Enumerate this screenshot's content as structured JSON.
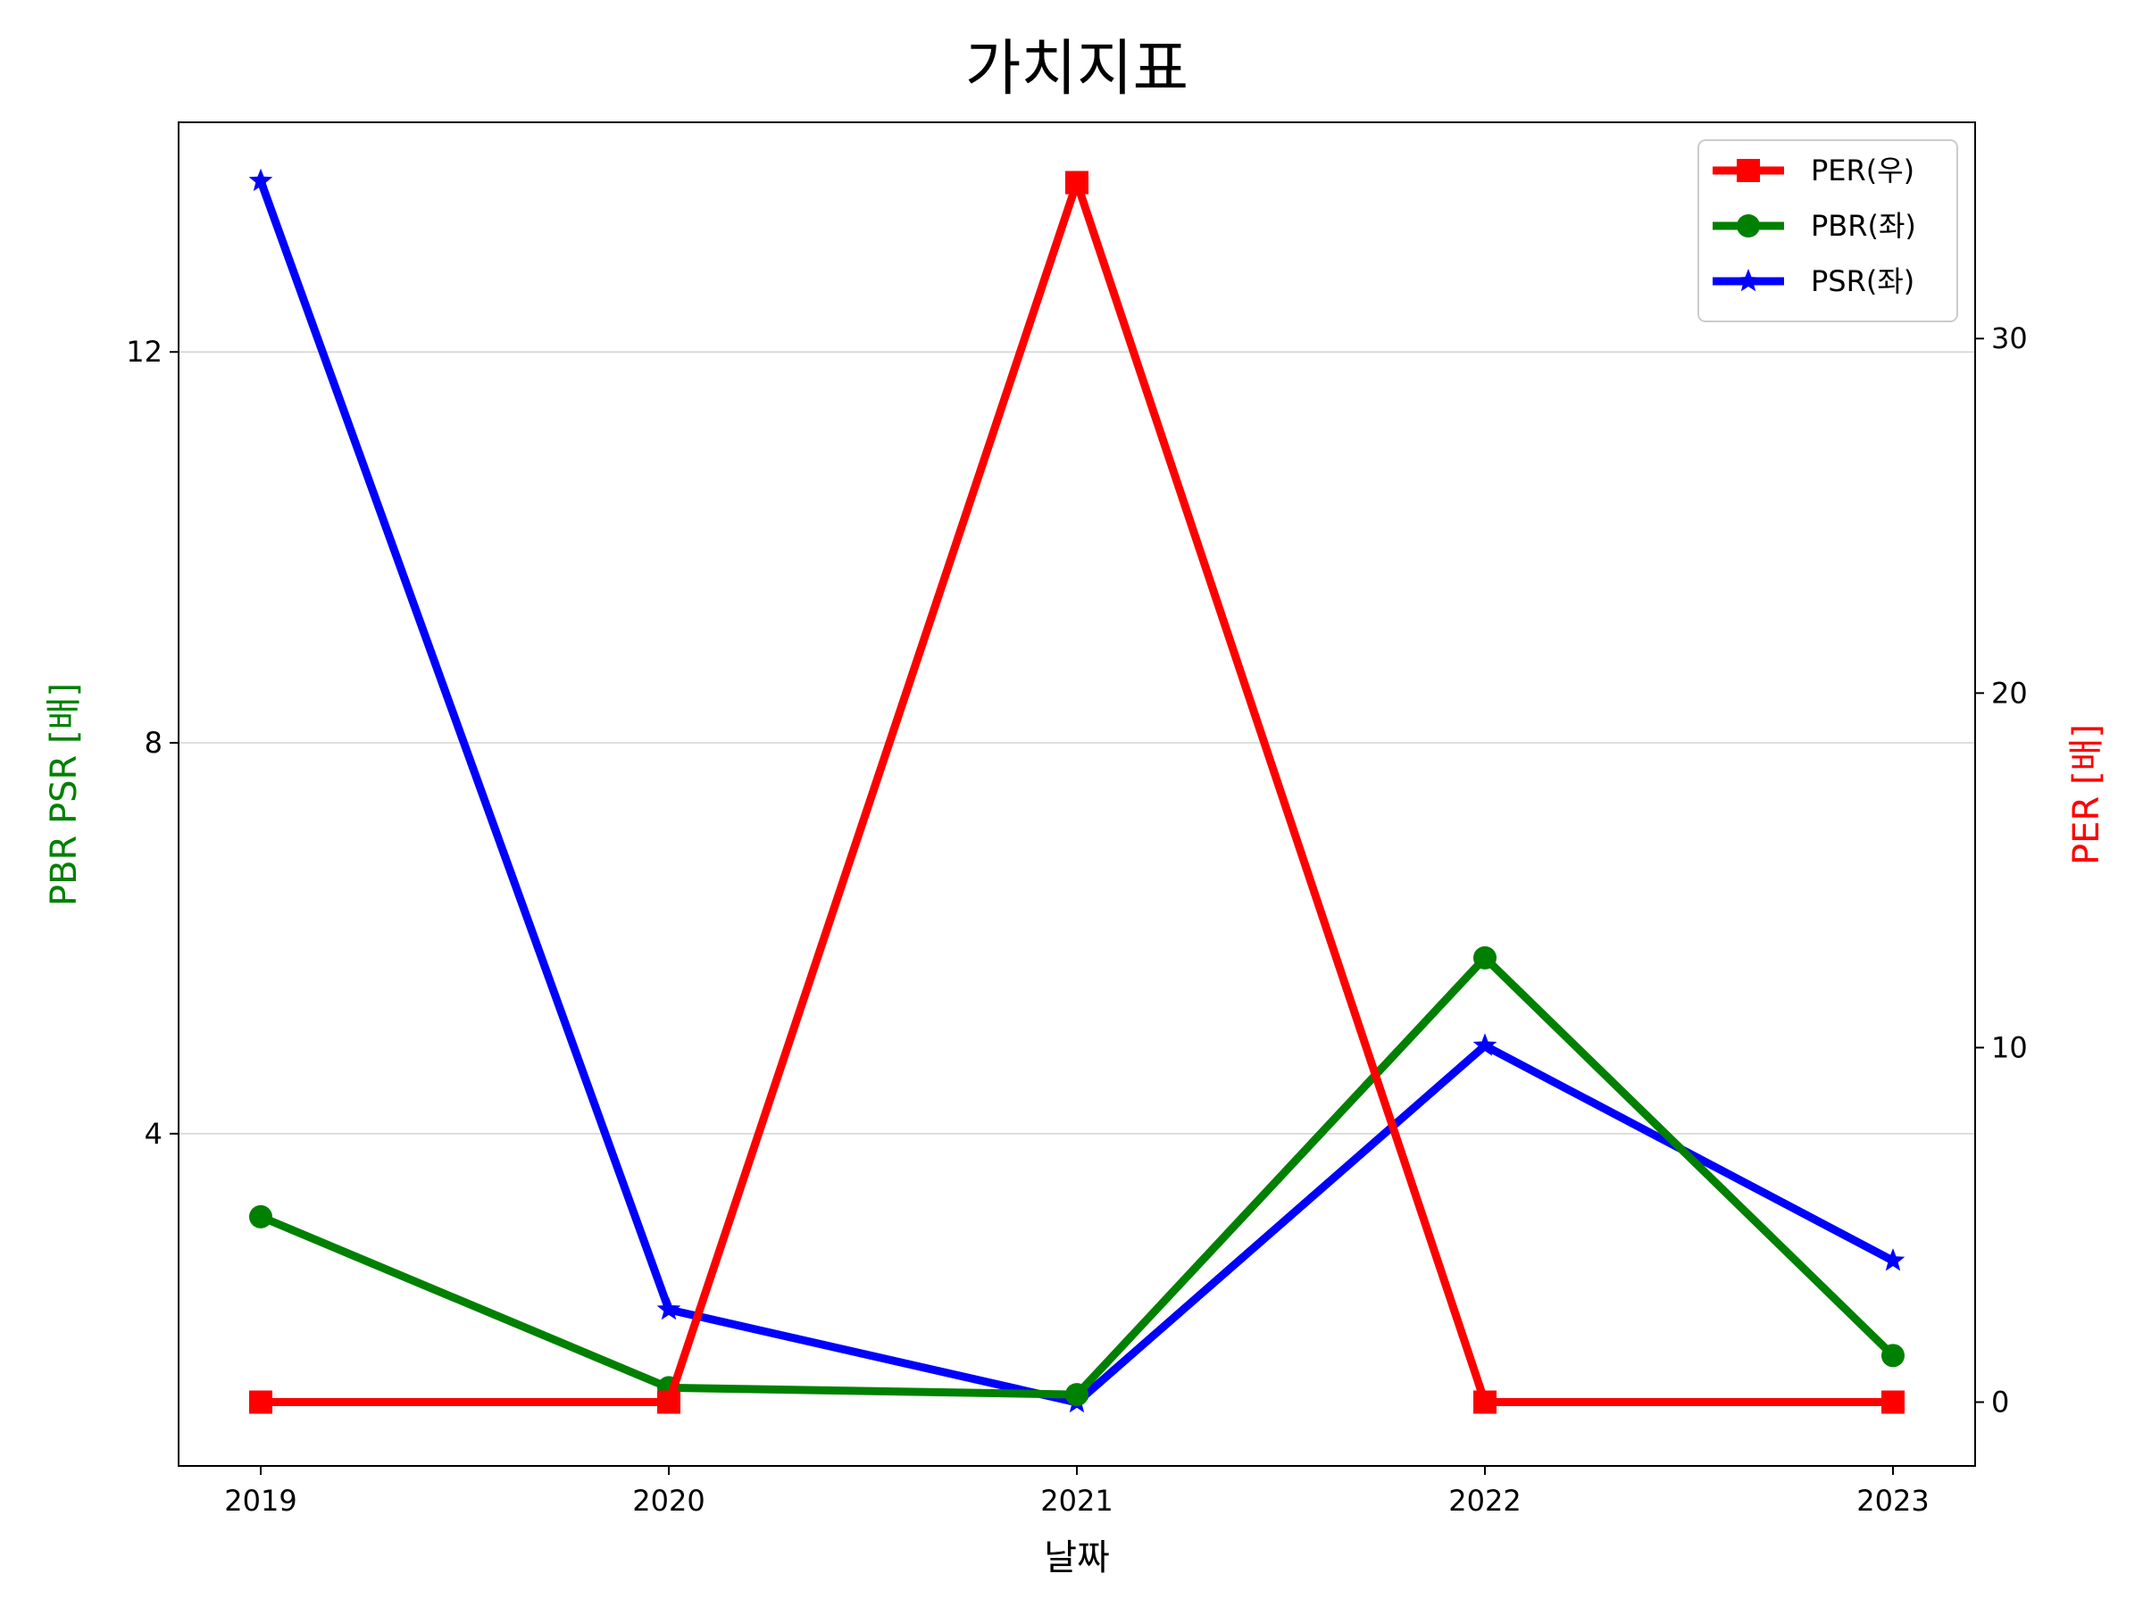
{
  "chart_data": {
    "type": "line",
    "title": "가치지표",
    "xlabel": "날짜",
    "ylabel_left": "PBR PSR [배]",
    "ylabel_right": "PER [배]",
    "ylabel_left_color": "#008000",
    "ylabel_right_color": "#ff0000",
    "categories": [
      "2019",
      "2020",
      "2021",
      "2022",
      "2023"
    ],
    "left_axis": {
      "ylim": [
        0.6,
        14.35
      ],
      "ticks": [
        4,
        8,
        12
      ]
    },
    "right_axis": {
      "ylim": [
        -1.8,
        36.1
      ],
      "ticks": [
        0,
        10,
        20,
        30
      ]
    },
    "grid": "horizontal, left axis",
    "legend_position": "top-right",
    "series": [
      {
        "name": "PER(우)",
        "axis": "right",
        "color": "#ff0000",
        "marker": "square",
        "values": [
          0,
          0,
          34.4,
          0,
          0
        ]
      },
      {
        "name": "PBR(좌)",
        "axis": "left",
        "color": "#008000",
        "marker": "circle",
        "values": [
          3.15,
          1.4,
          1.33,
          5.8,
          1.73
        ]
      },
      {
        "name": "PSR(좌)",
        "axis": "left",
        "color": "#0000ff",
        "marker": "star",
        "values": [
          13.75,
          2.2,
          1.25,
          4.9,
          2.7
        ]
      }
    ]
  }
}
